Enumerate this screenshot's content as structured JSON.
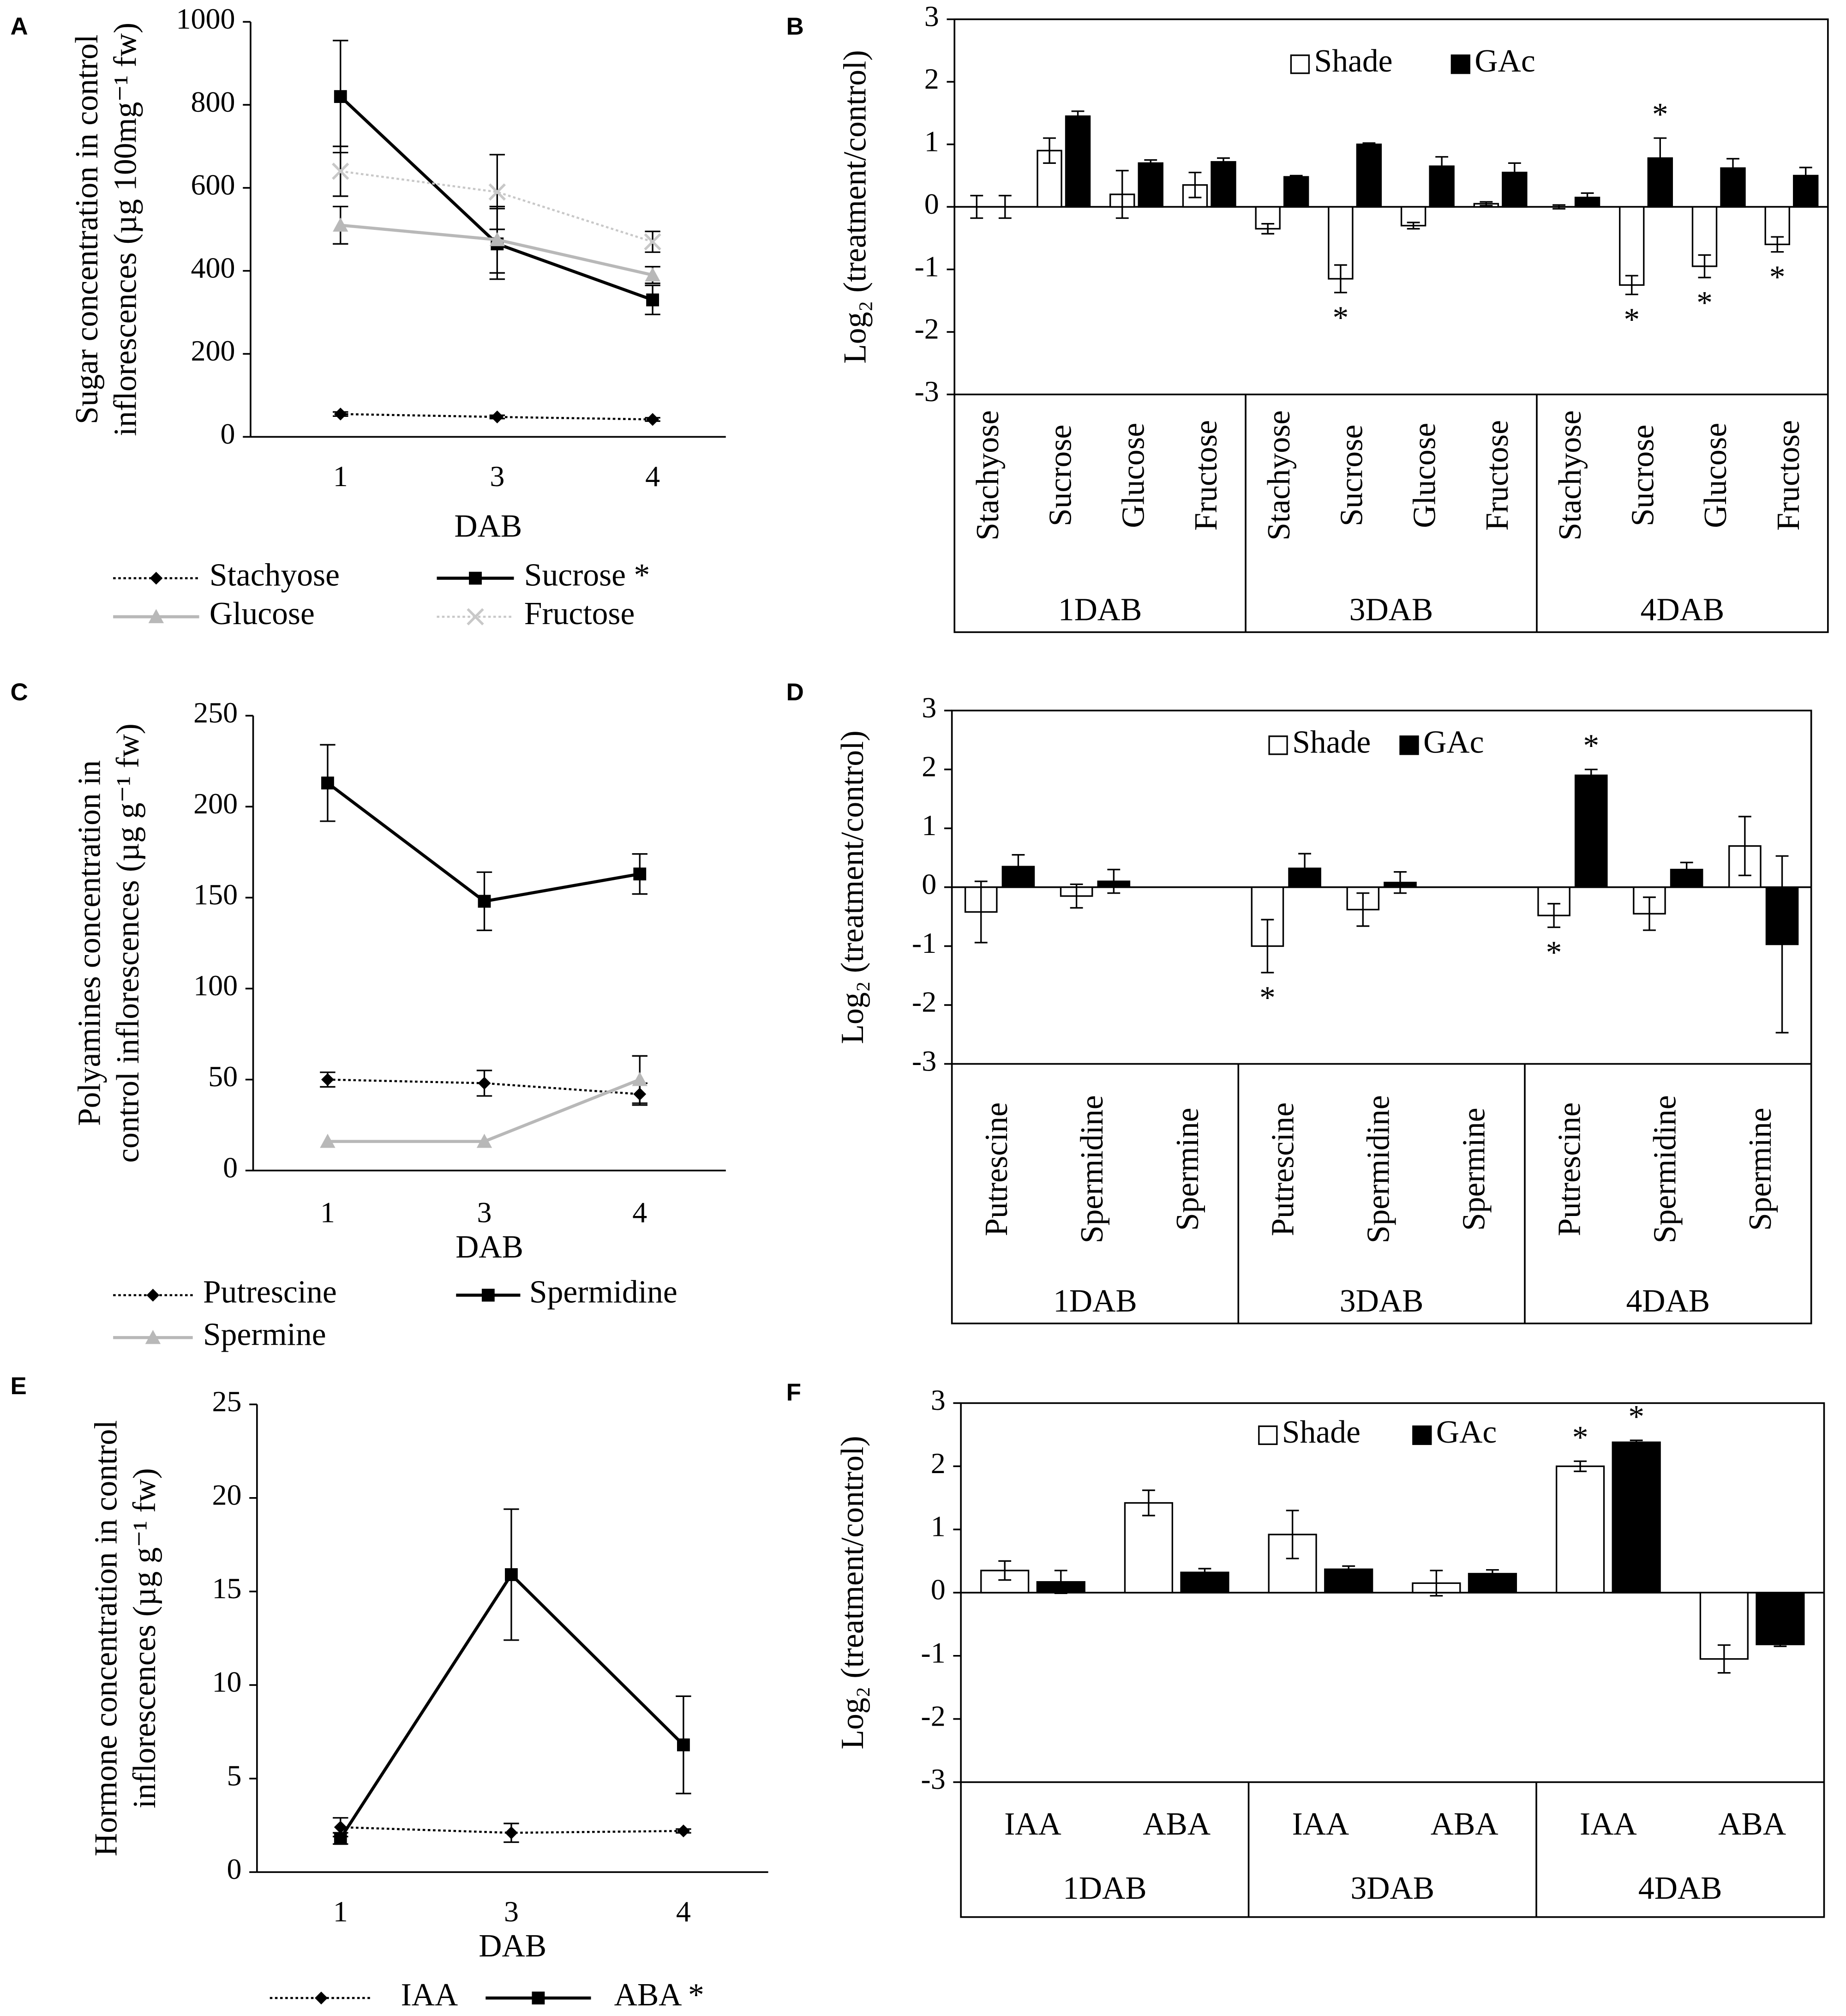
{
  "chart_data": [
    {
      "type": "line",
      "panel": "A",
      "categories": [
        "1",
        "3",
        "4"
      ],
      "xlabel": "DAB",
      "ylabel": [
        "Sugar concentration in control",
        "inflorescences (µg 100mg⁻¹ fw)"
      ],
      "ylim": [
        0,
        1000
      ],
      "yticks": [
        0,
        200,
        400,
        600,
        800,
        1000
      ],
      "series": [
        {
          "name": "Stachyose",
          "color": "#000000",
          "dash": "dotted",
          "marker": "diamond",
          "values": [
            55,
            48,
            42
          ],
          "errors": [
            5,
            4,
            4
          ]
        },
        {
          "name": "Sucrose *",
          "color": "#000000",
          "dash": "solid",
          "marker": "square",
          "values": [
            820,
            465,
            330
          ],
          "errors": [
            135,
            85,
            35
          ]
        },
        {
          "name": "Glucose",
          "color": "#b8b8b8",
          "dash": "solid",
          "marker": "triangle",
          "values": [
            510,
            475,
            390
          ],
          "errors": [
            45,
            80,
            20
          ]
        },
        {
          "name": "Fructose",
          "color": "#c8c8c8",
          "dash": "dotted",
          "marker": "x",
          "values": [
            640,
            590,
            470
          ],
          "errors": [
            60,
            90,
            25
          ]
        }
      ]
    },
    {
      "type": "bar",
      "panel": "B",
      "ylabel": "Log₂ (treatment/control)",
      "ylim": [
        -3,
        3
      ],
      "yticks": [
        -3,
        -2,
        -1,
        0,
        1,
        2,
        3
      ],
      "categories": [
        "Stachyose",
        "Sucrose",
        "Glucose",
        "Fructose",
        "Stachyose",
        "Sucrose",
        "Glucose",
        "Fructose",
        "Stachyose",
        "Sucrose",
        "Glucose",
        "Fructose"
      ],
      "groups": [
        "1DAB",
        "3DAB",
        "4DAB"
      ],
      "series": [
        {
          "name": "Shade",
          "color": "#ffffff",
          "values": [
            0.0,
            0.9,
            0.2,
            0.35,
            -0.35,
            -1.15,
            -0.3,
            0.05,
            0.0,
            -1.25,
            -0.95,
            -0.6
          ],
          "errors": [
            0.18,
            0.2,
            0.38,
            0.2,
            0.08,
            0.22,
            0.05,
            0.03,
            0.03,
            0.15,
            0.18,
            0.12
          ],
          "significance": [
            null,
            null,
            null,
            null,
            null,
            "*",
            null,
            null,
            null,
            "*",
            "*",
            "*"
          ]
        },
        {
          "name": "GAc",
          "color": "#000000",
          "values": [
            0.0,
            1.45,
            0.7,
            0.72,
            0.48,
            1.0,
            0.65,
            0.55,
            0.15,
            0.78,
            0.62,
            0.5
          ],
          "errors": [
            0.18,
            0.08,
            0.05,
            0.06,
            0.02,
            0.02,
            0.15,
            0.15,
            0.07,
            0.32,
            0.15,
            0.13
          ],
          "significance": [
            null,
            null,
            null,
            null,
            null,
            null,
            null,
            null,
            null,
            "*",
            null,
            null
          ]
        }
      ]
    },
    {
      "type": "line",
      "panel": "C",
      "categories": [
        "1",
        "3",
        "4"
      ],
      "xlabel": "DAB",
      "ylabel": [
        "Polyamines concentration in",
        "control inflorescences (µg g⁻¹ fw)"
      ],
      "ylim": [
        0,
        250
      ],
      "yticks": [
        0,
        50,
        100,
        150,
        200,
        250
      ],
      "series": [
        {
          "name": "Putrescine",
          "color": "#000000",
          "dash": "dotted",
          "marker": "diamond",
          "values": [
            50,
            48,
            42
          ],
          "errors": [
            4,
            7,
            6
          ]
        },
        {
          "name": "Spermidine",
          "color": "#000000",
          "dash": "solid",
          "marker": "square",
          "values": [
            213,
            148,
            163
          ],
          "errors": [
            21,
            16,
            11
          ]
        },
        {
          "name": "Spermine",
          "color": "#b8b8b8",
          "dash": "solid",
          "marker": "triangle",
          "values": [
            16,
            16,
            50
          ],
          "errors": [
            0,
            0,
            13
          ]
        }
      ]
    },
    {
      "type": "bar",
      "panel": "D",
      "ylabel": "Log₂ (treatment/control)",
      "ylim": [
        -3,
        3
      ],
      "yticks": [
        -3,
        -2,
        -1,
        0,
        1,
        2,
        3
      ],
      "categories": [
        "Putrescine",
        "Spermidine",
        "Spermine",
        "Putrescine",
        "Spermidine",
        "Spermine",
        "Putrescine",
        "Spermidine",
        "Spermine"
      ],
      "groups": [
        "1DAB",
        "3DAB",
        "4DAB"
      ],
      "series": [
        {
          "name": "Shade",
          "color": "#ffffff",
          "values": [
            -0.42,
            -0.15,
            null,
            -1.0,
            -0.38,
            null,
            -0.48,
            -0.45,
            0.7
          ],
          "errors": [
            0.52,
            0.2,
            null,
            0.45,
            0.28,
            null,
            0.2,
            0.28,
            0.5
          ],
          "significance": [
            null,
            null,
            null,
            "*",
            null,
            null,
            "*",
            null,
            null
          ]
        },
        {
          "name": "GAc",
          "color": "#000000",
          "values": [
            0.35,
            0.1,
            null,
            0.32,
            0.08,
            null,
            1.9,
            0.3,
            -0.97
          ],
          "errors": [
            0.2,
            0.2,
            null,
            0.25,
            0.18,
            null,
            0.1,
            0.12,
            1.5
          ],
          "significance": [
            null,
            null,
            null,
            null,
            null,
            null,
            "*",
            null,
            null
          ]
        }
      ]
    },
    {
      "type": "line",
      "panel": "E",
      "categories": [
        "1",
        "3",
        "4"
      ],
      "xlabel": "DAB",
      "ylabel": [
        "Hormone concentration in control",
        "inflorescences (µg g⁻¹ fw)"
      ],
      "ylim": [
        0,
        25
      ],
      "yticks": [
        0,
        5,
        10,
        15,
        20,
        25
      ],
      "series": [
        {
          "name": "IAA",
          "color": "#000000",
          "dash": "dotted",
          "marker": "diamond",
          "values": [
            2.4,
            2.1,
            2.2
          ],
          "errors": [
            0.5,
            0.5,
            0.1
          ]
        },
        {
          "name": "ABA *",
          "color": "#000000",
          "dash": "solid",
          "marker": "square",
          "values": [
            1.8,
            15.9,
            6.8
          ],
          "errors": [
            0.3,
            3.5,
            2.6
          ]
        }
      ]
    },
    {
      "type": "bar",
      "panel": "F",
      "ylabel": "Log₂ (treatment/control)",
      "ylim": [
        -3,
        3
      ],
      "yticks": [
        -3,
        -2,
        -1,
        0,
        1,
        2,
        3
      ],
      "categories": [
        "IAA",
        "ABA",
        "IAA",
        "ABA",
        "IAA",
        "ABA"
      ],
      "groups": [
        "1DAB",
        "3DAB",
        "4DAB"
      ],
      "series": [
        {
          "name": "Shade",
          "color": "#ffffff",
          "values": [
            0.35,
            1.42,
            0.92,
            0.15,
            2.0,
            -1.05
          ],
          "errors": [
            0.15,
            0.2,
            0.38,
            0.2,
            0.08,
            0.22
          ],
          "significance": [
            null,
            null,
            null,
            null,
            "*",
            null
          ]
        },
        {
          "name": "GAc",
          "color": "#000000",
          "values": [
            0.17,
            0.32,
            0.37,
            0.3,
            2.38,
            -0.82
          ],
          "errors": [
            0.18,
            0.06,
            0.05,
            0.06,
            0.03,
            0.03
          ],
          "significance": [
            null,
            null,
            null,
            null,
            "*",
            null
          ]
        }
      ]
    }
  ]
}
